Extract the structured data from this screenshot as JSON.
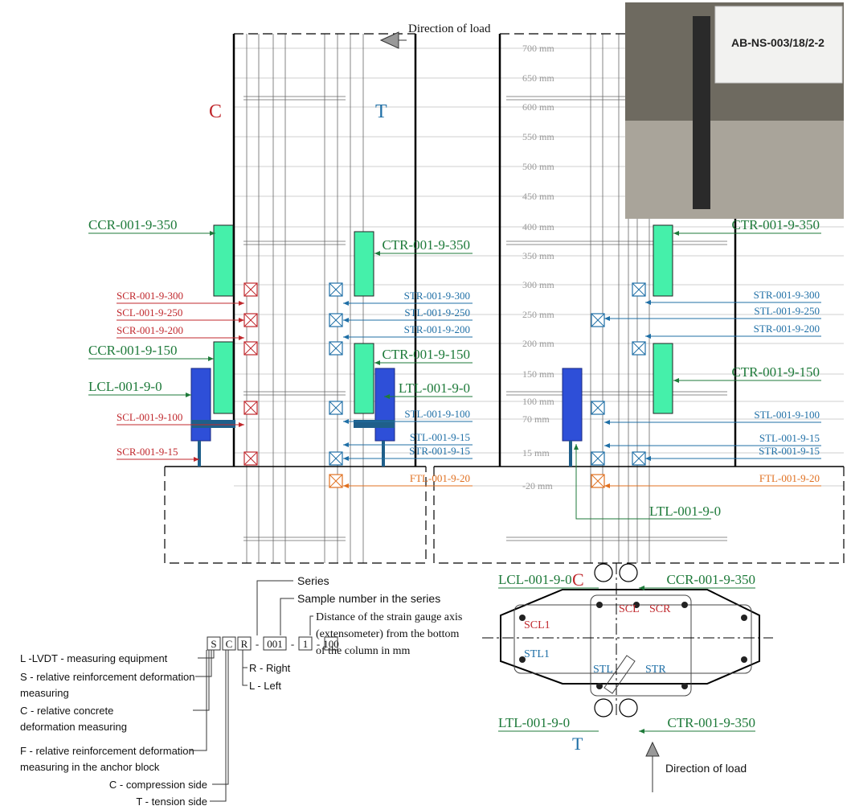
{
  "header": {
    "direction_of_load": "Direction of load",
    "compression": "C",
    "tension": "T"
  },
  "left_elevation": {
    "left_labels": [
      "CCR-001-9-350",
      "SCR-001-9-300",
      "SCL-001-9-250",
      "SCR-001-9-200",
      "CCR-001-9-150",
      "LCL-001-9-0",
      "SCL-001-9-100",
      "SCR-001-9-15"
    ],
    "right_labels": [
      "CTR-001-9-350",
      "STR-001-9-300",
      "STL-001-9-250",
      "STR-001-9-200",
      "CTR-001-9-150",
      "LTL-001-9-0",
      "STL-001-9-100",
      "STL-001-9-15",
      "STR-001-9-15",
      "FTL-001-9-20"
    ]
  },
  "right_elevation": {
    "heights": [
      "700 mm",
      "650 mm",
      "600 mm",
      "550 mm",
      "500 mm",
      "450 mm",
      "400 mm",
      "350 mm",
      "300 mm",
      "250 mm",
      "200 mm",
      "150 mm",
      "100 mm",
      "70 mm",
      "15 mm",
      "-20 mm"
    ],
    "labels": [
      "CTR-001-9-350",
      "STR-001-9-300",
      "STL-001-9-250",
      "STR-001-9-200",
      "CTR-001-9-150",
      "STL-001-9-100",
      "STL-001-9-15",
      "STR-001-9-15",
      "FTL-001-9-20",
      "LTL-001-9-0"
    ]
  },
  "photo": {
    "sign": "AB-NS-003/18/2-2"
  },
  "legend": {
    "series": "Series",
    "sample": "Sample number in the series",
    "distance": [
      "Distance of the strain gauge axis",
      "(extensometer) from the bottom",
      "of the column in mm"
    ],
    "code": [
      "S",
      "C",
      "R",
      "-",
      "001",
      "-",
      "1",
      "-",
      "100"
    ],
    "side": [
      "R - Right",
      "L - Left"
    ],
    "types": [
      [
        "L -LVDT - measuring equipment"
      ],
      [
        "S - relative reinforcement deformation",
        "measuring"
      ],
      [
        "C - relative concrete",
        "deformation measuring"
      ],
      [
        "F - relative reinforcement deformation",
        "measuring in the anchor block"
      ]
    ],
    "sides": [
      "C - compression side",
      "T - tension side"
    ]
  },
  "cross_section": {
    "top_left": "LCL-001-9-0",
    "top_mark": "C",
    "top_right": "CCR-001-9-350",
    "bar_labels": [
      "SCL",
      "SCR",
      "SCL1",
      "STL1",
      "STL",
      "STR"
    ],
    "bottom_left": "LTL-001-9-0",
    "bottom_mark": "T",
    "bottom_right": "CTR-001-9-350",
    "direction": "Direction of load"
  }
}
